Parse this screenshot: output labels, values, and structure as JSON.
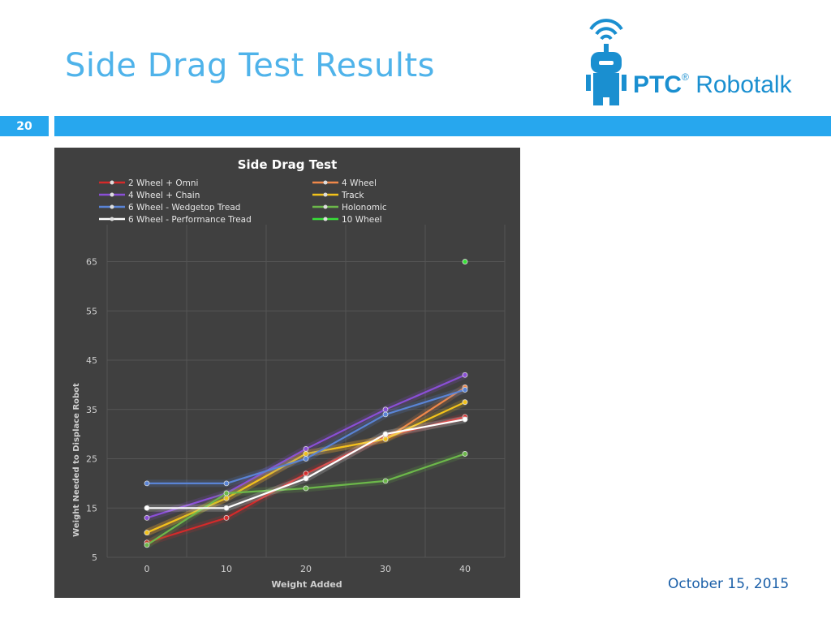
{
  "slide": {
    "title": "Side Drag Test Results",
    "number": "20",
    "date": "October 15, 2015"
  },
  "logo": {
    "brand": "PTC",
    "reg_mark": "®",
    "product": "Robotalk",
    "icon": "robot-wifi-icon"
  },
  "colors": {
    "accent": "#27a7ee",
    "title": "#4fb3ea",
    "chart_bg": "#404040"
  },
  "chart_data": {
    "type": "line",
    "title": "Side Drag Test",
    "xlabel": "Weight Added",
    "ylabel": "Weight Needed to Displace Robot",
    "x": [
      0,
      10,
      20,
      30,
      40
    ],
    "xlim": [
      0,
      40
    ],
    "ylim": [
      5,
      65
    ],
    "yticks": [
      5,
      15,
      25,
      35,
      45,
      55,
      65
    ],
    "grid": true,
    "legend_position": "top",
    "series": [
      {
        "name": "2 Wheel + Omni",
        "color": "#d42a2a",
        "values": [
          8,
          13,
          22,
          29.5,
          33.5
        ]
      },
      {
        "name": "4 Wheel",
        "color": "#f0884a",
        "values": [
          10,
          17,
          26,
          29,
          39.5
        ]
      },
      {
        "name": "4 Wheel + Chain",
        "color": "#8a4fd6",
        "values": [
          13,
          18,
          27,
          35,
          42
        ]
      },
      {
        "name": "Track",
        "color": "#f2c21b",
        "values": [
          10,
          17,
          26,
          29,
          36.5
        ]
      },
      {
        "name": "6 Wheel - Wedgetop Tread",
        "color": "#5a84d6",
        "values": [
          20,
          20,
          25,
          34,
          39
        ]
      },
      {
        "name": "Holonomic",
        "color": "#6cb84a",
        "values": [
          7.5,
          18,
          19,
          20.5,
          26
        ]
      },
      {
        "name": "6 Wheel - Performance Tread",
        "color": "#ffffff",
        "values": [
          15,
          15,
          21,
          30,
          33
        ]
      },
      {
        "name": "10 Wheel",
        "color": "#38e038",
        "values": [
          null,
          null,
          null,
          null,
          65
        ]
      }
    ]
  }
}
